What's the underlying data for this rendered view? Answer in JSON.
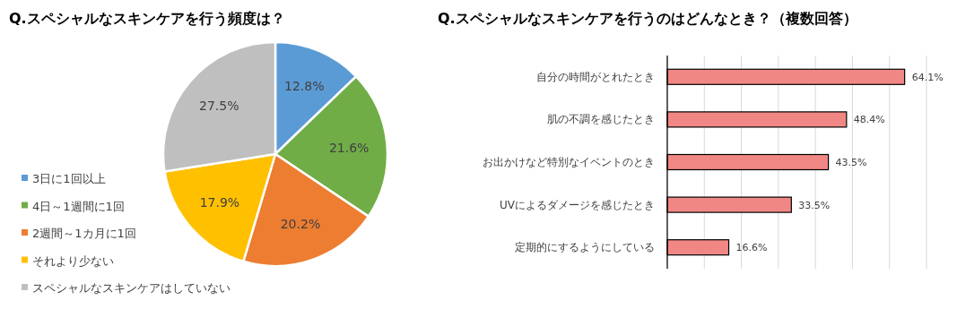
{
  "chart_data": [
    {
      "type": "pie",
      "title": "Q.スペシャルなスキンケアを行う頻度は？",
      "categories": [
        "3日に1回以上",
        "4日～1週間に1回",
        "2週間～1カ月に1回",
        "それより少ない",
        "スペシャルなスキンケアはしていない"
      ],
      "values": [
        12.8,
        21.6,
        20.2,
        17.9,
        27.5
      ],
      "value_labels": [
        "12.8%",
        "21.6%",
        "20.2%",
        "17.9%",
        "27.5%"
      ],
      "colors": [
        "#5b9bd5",
        "#70ad47",
        "#ed7d31",
        "#ffc000",
        "#bfbfbf"
      ],
      "legend": "bottom left"
    },
    {
      "type": "bar",
      "orientation": "horizontal",
      "title": "Q.スペシャルなスキンケアを行うのはどんなとき？（複数回答）",
      "categories": [
        "自分の時間がとれたとき",
        "肌の不調を感じたとき",
        "お出かけなど特別なイベントのとき",
        "UVによるダメージを感じたとき",
        "定期的にするようにしている"
      ],
      "values": [
        64.1,
        48.4,
        43.5,
        33.5,
        16.6
      ],
      "value_labels": [
        "64.1%",
        "48.4%",
        "43.5%",
        "33.5%",
        "16.6%"
      ],
      "color": "#f08784",
      "xlim": [
        0,
        70
      ],
      "xticks": [
        {
          "value": 0,
          "label": null
        },
        {
          "value": 10,
          "label": null
        },
        {
          "value": 20,
          "label": null
        },
        {
          "value": 30,
          "label": null
        },
        {
          "value": 40,
          "label": null
        },
        {
          "value": 50,
          "label": null
        },
        {
          "value": 60,
          "label": null
        },
        {
          "value": 70,
          "label": null
        }
      ],
      "grid": "x",
      "tick_labels": "y"
    }
  ]
}
